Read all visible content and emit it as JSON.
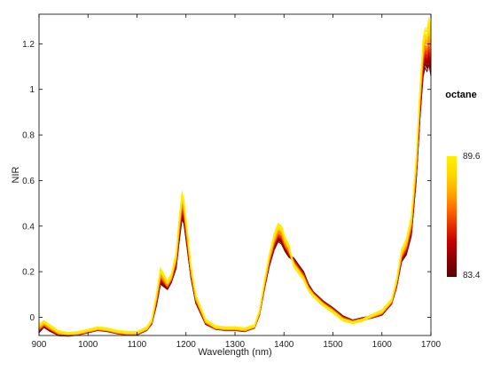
{
  "chart_data": {
    "type": "line",
    "title": "",
    "xlabel": "Wavelength (nm)",
    "ylabel": "NIR",
    "xlim": [
      900,
      1700
    ],
    "ylim": [
      -0.08,
      1.33
    ],
    "x_ticks": [
      900,
      1000,
      1100,
      1200,
      1300,
      1400,
      1500,
      1600,
      1700
    ],
    "y_ticks": [
      0,
      0.2,
      0.4,
      0.6,
      0.8,
      1,
      1.2
    ],
    "y_tick_labels": [
      "0",
      "0.2",
      "0.4",
      "0.6",
      "0.8",
      "1",
      "1.2"
    ],
    "grid": false,
    "spectrum_x": [
      900,
      910,
      920,
      940,
      960,
      980,
      1000,
      1020,
      1040,
      1060,
      1080,
      1100,
      1120,
      1130,
      1140,
      1148,
      1155,
      1162,
      1170,
      1180,
      1186,
      1192,
      1196,
      1202,
      1210,
      1220,
      1240,
      1260,
      1280,
      1300,
      1320,
      1340,
      1350,
      1360,
      1370,
      1380,
      1388,
      1395,
      1402,
      1410,
      1420,
      1430,
      1440,
      1450,
      1460,
      1480,
      1500,
      1520,
      1540,
      1560,
      1580,
      1600,
      1620,
      1630,
      1640,
      1650,
      1660,
      1670,
      1678,
      1684,
      1688,
      1692,
      1696,
      1700
    ],
    "spectrum_mean": [
      -0.05,
      -0.03,
      -0.045,
      -0.07,
      -0.075,
      -0.07,
      -0.06,
      -0.05,
      -0.055,
      -0.065,
      -0.07,
      -0.07,
      -0.05,
      -0.02,
      0.08,
      0.18,
      0.16,
      0.14,
      0.17,
      0.25,
      0.38,
      0.49,
      0.46,
      0.35,
      0.2,
      0.08,
      -0.02,
      -0.045,
      -0.05,
      -0.05,
      -0.055,
      -0.04,
      0.02,
      0.14,
      0.25,
      0.33,
      0.37,
      0.36,
      0.32,
      0.29,
      0.24,
      0.21,
      0.18,
      0.13,
      0.1,
      0.06,
      0.03,
      -0.005,
      -0.02,
      -0.01,
      0.005,
      0.02,
      0.07,
      0.15,
      0.27,
      0.31,
      0.4,
      0.65,
      0.95,
      1.14,
      1.18,
      1.17,
      1.21,
      1.16
    ],
    "spectrum_slope": [
      0.02,
      0.015,
      0.015,
      0.01,
      0.005,
      0.005,
      0.005,
      0.005,
      0.005,
      0.005,
      0.005,
      0.005,
      0.005,
      0.01,
      0.03,
      0.04,
      0.03,
      0.02,
      0.02,
      0.04,
      0.06,
      0.07,
      0.06,
      0.05,
      0.03,
      0.02,
      0.01,
      0.005,
      0.005,
      0.005,
      0.005,
      0.005,
      0.01,
      0.02,
      0.03,
      0.04,
      0.045,
      0.045,
      0.035,
      0.03,
      -0.02,
      -0.02,
      -0.02,
      -0.015,
      -0.01,
      -0.01,
      -0.01,
      -0.01,
      -0.005,
      -0.005,
      0.005,
      0.01,
      0.01,
      0.02,
      0.03,
      0.04,
      0.05,
      0.06,
      0.08,
      0.1,
      0.1,
      0.11,
      0.12,
      0.12
    ],
    "series_count": 60,
    "colorbar": {
      "title": "octane",
      "min": 83.4,
      "max": 89.6,
      "min_label": "83.4",
      "max_label": "89.6",
      "colormap": "hot",
      "colors": [
        "#5a0000",
        "#8a0000",
        "#c00000",
        "#e83000",
        "#ff7000",
        "#ffb000",
        "#ffd800",
        "#ffee00"
      ]
    }
  }
}
